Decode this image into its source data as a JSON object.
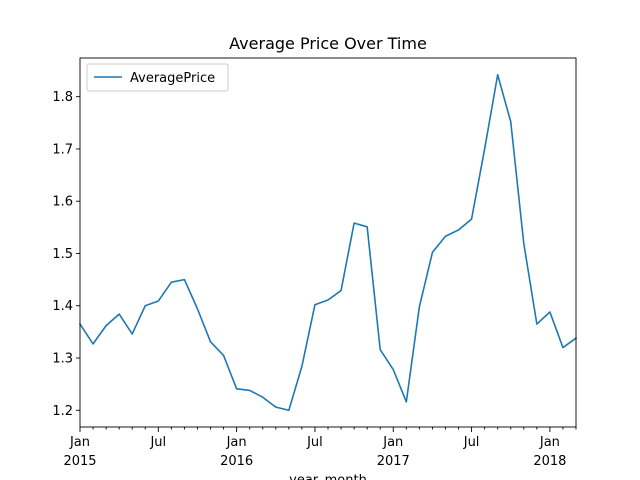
{
  "chart_data": {
    "type": "line",
    "title": "Average Price Over Time",
    "xlabel": "year_month",
    "ylabel": "",
    "x": [
      "2015-01",
      "2015-02",
      "2015-03",
      "2015-04",
      "2015-05",
      "2015-06",
      "2015-07",
      "2015-08",
      "2015-09",
      "2015-10",
      "2015-11",
      "2015-12",
      "2016-01",
      "2016-02",
      "2016-03",
      "2016-04",
      "2016-05",
      "2016-06",
      "2016-07",
      "2016-08",
      "2016-09",
      "2016-10",
      "2016-11",
      "2016-12",
      "2017-01",
      "2017-02",
      "2017-03",
      "2017-04",
      "2017-05",
      "2017-06",
      "2017-07",
      "2017-08",
      "2017-09",
      "2017-10",
      "2017-11",
      "2017-12",
      "2018-01",
      "2018-02",
      "2018-03"
    ],
    "series": [
      {
        "name": "AveragePrice",
        "color": "#1f77b4",
        "values": [
          1.365,
          1.327,
          1.362,
          1.384,
          1.346,
          1.4,
          1.409,
          1.445,
          1.45,
          1.394,
          1.331,
          1.305,
          1.241,
          1.238,
          1.225,
          1.206,
          1.2,
          1.284,
          1.402,
          1.411,
          1.429,
          1.558,
          1.551,
          1.316,
          1.278,
          1.216,
          1.398,
          1.502,
          1.533,
          1.545,
          1.566,
          1.7,
          1.842,
          1.752,
          1.519,
          1.365,
          1.388,
          1.32,
          1.338
        ]
      }
    ],
    "ylim": [
      1.168,
      1.874
    ],
    "yticks": [
      1.2,
      1.3,
      1.4,
      1.5,
      1.6,
      1.7,
      1.8
    ],
    "ytick_labels": [
      "1.2",
      "1.3",
      "1.4",
      "1.5",
      "1.6",
      "1.7",
      "1.8"
    ],
    "xtick_labels": [
      {
        "month": "2015-01",
        "line1": "Jan",
        "line2": "2015"
      },
      {
        "month": "2015-07",
        "line1": "Jul",
        "line2": ""
      },
      {
        "month": "2016-01",
        "line1": "Jan",
        "line2": "2016"
      },
      {
        "month": "2016-07",
        "line1": "Jul",
        "line2": ""
      },
      {
        "month": "2017-01",
        "line1": "Jan",
        "line2": "2017"
      },
      {
        "month": "2017-07",
        "line1": "Jul",
        "line2": ""
      },
      {
        "month": "2018-01",
        "line1": "Jan",
        "line2": "2018"
      }
    ],
    "legend": {
      "position": "upper-left",
      "entries": [
        "AveragePrice"
      ]
    },
    "grid": false
  }
}
